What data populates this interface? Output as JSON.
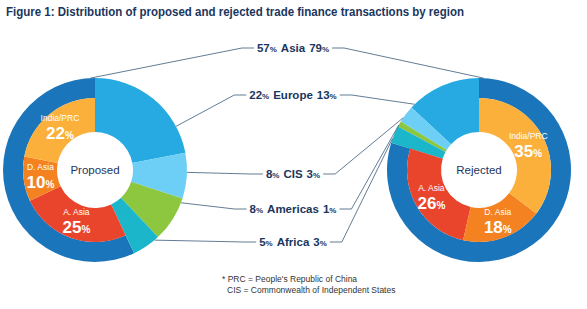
{
  "chart_data": {
    "type": "donut",
    "title": "Figure 1: Distribution of proposed and rejected trade finance transactions by region",
    "categories": [
      "Asia",
      "Europe",
      "CIS",
      "Americas",
      "Africa"
    ],
    "colors": [
      "#1b75bb",
      "#27aae1",
      "#6dcff6",
      "#8dc63f",
      "#1bb6c9"
    ],
    "series": [
      {
        "name": "Proposed",
        "values": [
          57,
          22,
          8,
          8,
          5
        ],
        "value_labels": [
          "57%",
          "22%",
          "8%",
          "8%",
          "5%"
        ],
        "inner_values": [
          25,
          10,
          22
        ],
        "inner_value_labels": [
          "25%",
          "10%",
          "22%"
        ]
      },
      {
        "name": "Rejected",
        "values": [
          79,
          13,
          3,
          1,
          3
        ],
        "value_labels": [
          "79%",
          "13%",
          "3%",
          "1%",
          "3%"
        ],
        "inner_values": [
          26,
          18,
          35
        ],
        "inner_value_labels": [
          "26%",
          "18%",
          "35%"
        ]
      }
    ],
    "inner_categories": [
      "A. Asia",
      "D. Asia",
      "India/PRC"
    ],
    "inner_colors": [
      "#e8452c",
      "#f58220",
      "#fbb03b"
    ],
    "notes": [
      "* PRC = People's Republic of China",
      "CIS = Commonwealth of Independent States"
    ]
  }
}
